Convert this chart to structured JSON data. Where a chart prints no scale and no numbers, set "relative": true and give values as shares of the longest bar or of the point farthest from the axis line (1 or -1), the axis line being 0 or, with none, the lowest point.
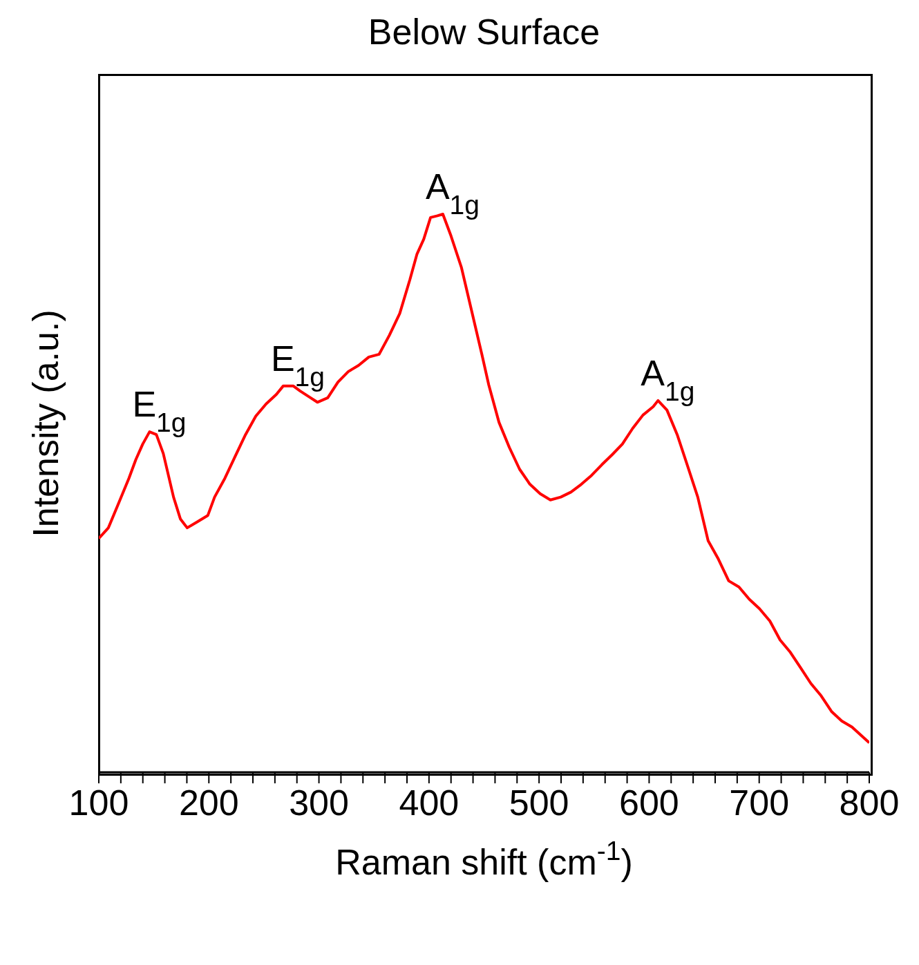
{
  "chart_data": {
    "type": "line",
    "title": "Below Surface",
    "xlabel": "Raman shift (cm$^{-1}$)",
    "ylabel": "Intensity (a.u.)",
    "relative": true,
    "xlim": [
      100,
      800
    ],
    "xticks": [
      100,
      {
        "value": 120,
        "label": null
      },
      {
        "value": 140,
        "label": null
      },
      {
        "value": 160,
        "label": null
      },
      {
        "value": 180,
        "label": null
      },
      200,
      {
        "value": 220,
        "label": null
      },
      {
        "value": 240,
        "label": null
      },
      {
        "value": 260,
        "label": null
      },
      {
        "value": 280,
        "label": null
      },
      300,
      {
        "value": 320,
        "label": null
      },
      {
        "value": 340,
        "label": null
      },
      {
        "value": 360,
        "label": null
      },
      {
        "value": 380,
        "label": null
      },
      400,
      {
        "value": 420,
        "label": null
      },
      {
        "value": 440,
        "label": null
      },
      {
        "value": 460,
        "label": null
      },
      {
        "value": 480,
        "label": null
      },
      500,
      {
        "value": 520,
        "label": null
      },
      {
        "value": 540,
        "label": null
      },
      {
        "value": 560,
        "label": null
      },
      {
        "value": 580,
        "label": null
      },
      600,
      {
        "value": 620,
        "label": null
      },
      {
        "value": 640,
        "label": null
      },
      {
        "value": 660,
        "label": null
      },
      {
        "value": 680,
        "label": null
      },
      700,
      {
        "value": 720,
        "label": null
      },
      {
        "value": 740,
        "label": null
      },
      {
        "value": 760,
        "label": null
      },
      {
        "value": 780,
        "label": null
      },
      800
    ],
    "x": [
      100,
      108.7,
      118,
      127.4,
      133.6,
      139.9,
      146.1,
      152.3,
      158.6,
      167.9,
      174.1,
      180.3,
      189.7,
      199,
      205.2,
      214.6,
      223.9,
      233.3,
      242.6,
      252,
      261.3,
      267.5,
      276.8,
      283,
      292.4,
      298.6,
      308,
      317.3,
      326.7,
      336,
      345.3,
      354.7,
      364,
      373.4,
      382.7,
      389,
      395.2,
      401.4,
      407.6,
      412.6,
      420,
      429.4,
      438.7,
      448,
      454.3,
      463.6,
      473,
      482.3,
      491.7,
      501,
      510.3,
      519.7,
      529,
      538.4,
      547.7,
      557,
      566.4,
      575.7,
      585,
      594.4,
      603.7,
      608.1,
      616.2,
      625.5,
      634.9,
      644.2,
      653.6,
      662.9,
      672.3,
      681.6,
      691,
      700.3,
      709.7,
      719,
      728.3,
      737.7,
      747,
      756.3,
      765.7,
      775,
      784.3,
      800
    ],
    "series": [
      {
        "color": "#ff0000",
        "values": [
          0.419,
          0.438,
          0.482,
          0.527,
          0.56,
          0.588,
          0.61,
          0.605,
          0.571,
          0.493,
          0.454,
          0.438,
          0.449,
          0.46,
          0.493,
          0.527,
          0.566,
          0.605,
          0.638,
          0.66,
          0.677,
          0.692,
          0.692,
          0.683,
          0.671,
          0.663,
          0.671,
          0.699,
          0.718,
          0.729,
          0.744,
          0.749,
          0.783,
          0.822,
          0.883,
          0.928,
          0.955,
          0.994,
          0.997,
          1.0,
          0.961,
          0.905,
          0.827,
          0.749,
          0.694,
          0.627,
          0.582,
          0.543,
          0.516,
          0.499,
          0.488,
          0.493,
          0.502,
          0.516,
          0.532,
          0.551,
          0.569,
          0.588,
          0.616,
          0.64,
          0.655,
          0.666,
          0.649,
          0.605,
          0.549,
          0.493,
          0.415,
          0.382,
          0.343,
          0.332,
          0.31,
          0.293,
          0.271,
          0.237,
          0.215,
          0.187,
          0.159,
          0.137,
          0.109,
          0.092,
          0.081,
          0.053
        ]
      }
    ],
    "annotations": [
      {
        "text": "E$_{1g}$",
        "x": 146.1,
        "y": 0.61
      },
      {
        "text": "E$_{1g}$",
        "x": 272,
        "y": 0.692
      },
      {
        "text": "A$_{1g}$",
        "x": 412.6,
        "y": 1.0
      },
      {
        "text": "A$_{1g}$",
        "x": 608.1,
        "y": 0.666
      }
    ],
    "marker": "none",
    "line_style": "solid"
  }
}
